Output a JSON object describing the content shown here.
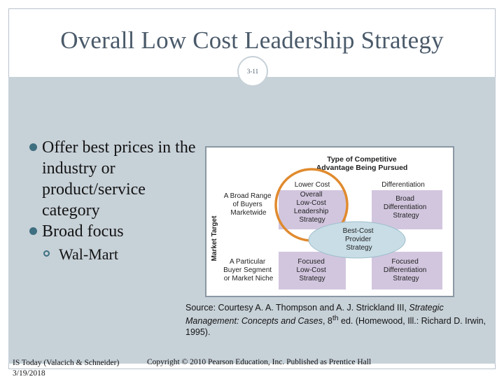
{
  "slide": {
    "title": "Overall Low Cost Leadership Strategy",
    "number": "3-11"
  },
  "bullets": [
    {
      "text": "Offer best prices in the industry or product/service category"
    },
    {
      "text": "Broad focus",
      "sub": [
        "Wal-Mart"
      ]
    }
  ],
  "figure": {
    "header_line1": "Type of Competitive",
    "header_line2": "Advantage Being Pursued",
    "side_label": "Market Target",
    "col_lower_cost": "Lower Cost",
    "col_differentiation": "Differentiation",
    "row_broad": [
      "A Broad Range",
      "of Buyers",
      "Marketwide"
    ],
    "row_narrow": [
      "A Particular",
      "Buyer Segment",
      "or Market Niche"
    ],
    "cell_overall": [
      "Overall",
      "Low-Cost",
      "Leadership",
      "Strategy"
    ],
    "cell_broad_diff": [
      "Broad",
      "Differentiation",
      "Strategy"
    ],
    "cell_best_cost": [
      "Best-Cost",
      "Provider",
      "Strategy"
    ],
    "cell_focused_low": [
      "Focused",
      "Low-Cost",
      "Strategy"
    ],
    "cell_focused_diff": [
      "Focused",
      "Differentiation",
      "Strategy"
    ],
    "colors": {
      "cell": "#d2c6df",
      "best_cost": "#c8dde6",
      "highlight": "#e08a2e",
      "frame": "#8a98a4"
    }
  },
  "source": {
    "prefix": "Source: Courtesy A. A. Thompson and A. J. Strickland III, ",
    "title": "Strategic Management: Concepts and Cases",
    "edition_num": ", 8",
    "sup": "th",
    "suffix": " ed. (Homewood, Ill.: Richard D. Irwin, 1995)."
  },
  "footer": {
    "left_line1": "IS Today (Valacich & Schneider)",
    "left_line2": "3/19/2018",
    "copyright": "Copyright © 2010 Pearson Education, Inc. Published as Prentice Hall"
  }
}
